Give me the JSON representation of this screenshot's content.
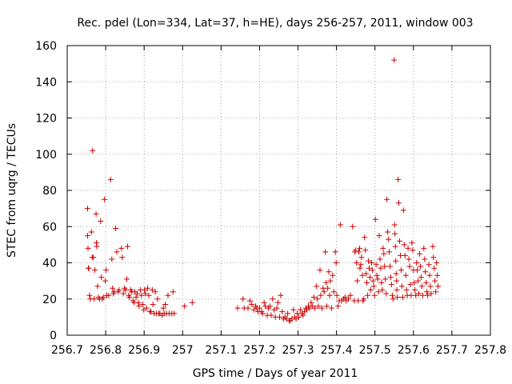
{
  "chart_data": {
    "type": "scatter",
    "title": "Rec. pdel (Lon=334, Lat=37, h=HE), days 256-257, 2011, window 003",
    "xlabel": "GPS time / Days of year 2011",
    "ylabel": "STEC from uqrg / TECUs",
    "xlim": [
      256.7,
      257.8
    ],
    "ylim": [
      0,
      160
    ],
    "xticks": [
      256.7,
      256.8,
      256.9,
      257.0,
      257.1,
      257.2,
      257.3,
      257.4,
      257.5,
      257.6,
      257.7,
      257.8
    ],
    "xtick_labels": [
      "256.7",
      "256.8",
      "256.9",
      "257",
      "257.1",
      "257.2",
      "257.3",
      "257.4",
      "257.5",
      "257.6",
      "257.7",
      "257.8"
    ],
    "yticks": [
      0,
      20,
      40,
      60,
      80,
      100,
      120,
      140,
      160
    ],
    "ytick_labels": [
      "0",
      "20",
      "40",
      "60",
      "80",
      "100",
      "120",
      "140",
      "160"
    ],
    "grid": true,
    "marker": "+",
    "color": "#cc0000",
    "points": [
      [
        256.753,
        70
      ],
      [
        256.753,
        55
      ],
      [
        256.754,
        48
      ],
      [
        256.755,
        37
      ],
      [
        256.756,
        37
      ],
      [
        256.758,
        22
      ],
      [
        256.76,
        20
      ],
      [
        256.763,
        57
      ],
      [
        256.765,
        43
      ],
      [
        256.766,
        102
      ],
      [
        256.768,
        43
      ],
      [
        256.77,
        20
      ],
      [
        256.772,
        36
      ],
      [
        256.775,
        67
      ],
      [
        256.776,
        51
      ],
      [
        256.777,
        49
      ],
      [
        256.779,
        27
      ],
      [
        256.781,
        21
      ],
      [
        256.784,
        20
      ],
      [
        256.787,
        63
      ],
      [
        256.789,
        32
      ],
      [
        256.791,
        20
      ],
      [
        256.794,
        21
      ],
      [
        256.797,
        75
      ],
      [
        256.799,
        30
      ],
      [
        256.801,
        36
      ],
      [
        256.803,
        22
      ],
      [
        256.808,
        22
      ],
      [
        256.813,
        86
      ],
      [
        256.816,
        42
      ],
      [
        256.818,
        26
      ],
      [
        256.82,
        23
      ],
      [
        256.822,
        24
      ],
      [
        256.826,
        59
      ],
      [
        256.829,
        46
      ],
      [
        256.832,
        24
      ],
      [
        256.835,
        25
      ],
      [
        256.841,
        48
      ],
      [
        256.843,
        43
      ],
      [
        256.846,
        23
      ],
      [
        256.849,
        26
      ],
      [
        256.852,
        25
      ],
      [
        256.855,
        31
      ],
      [
        256.857,
        49
      ],
      [
        256.86,
        22
      ],
      [
        256.862,
        21
      ],
      [
        256.865,
        25
      ],
      [
        256.868,
        24
      ],
      [
        256.871,
        19
      ],
      [
        256.874,
        18
      ],
      [
        256.876,
        24
      ],
      [
        256.879,
        21
      ],
      [
        256.882,
        23
      ],
      [
        256.885,
        18
      ],
      [
        256.887,
        16
      ],
      [
        256.89,
        25
      ],
      [
        256.893,
        22
      ],
      [
        256.896,
        17
      ],
      [
        256.899,
        14
      ],
      [
        256.901,
        25
      ],
      [
        256.903,
        23
      ],
      [
        256.906,
        15
      ],
      [
        256.909,
        26
      ],
      [
        256.912,
        22
      ],
      [
        256.915,
        13
      ],
      [
        256.918,
        13
      ],
      [
        256.921,
        25
      ],
      [
        256.923,
        17
      ],
      [
        256.926,
        12
      ],
      [
        256.929,
        24
      ],
      [
        256.932,
        12
      ],
      [
        256.935,
        20
      ],
      [
        256.938,
        12
      ],
      [
        256.941,
        12
      ],
      [
        256.947,
        11
      ],
      [
        256.95,
        15
      ],
      [
        256.952,
        12
      ],
      [
        256.955,
        17
      ],
      [
        256.958,
        12
      ],
      [
        256.962,
        22
      ],
      [
        256.965,
        12
      ],
      [
        256.972,
        12
      ],
      [
        256.975,
        24
      ],
      [
        256.978,
        12
      ],
      [
        257.005,
        16
      ],
      [
        257.025,
        18
      ],
      [
        257.143,
        15
      ],
      [
        257.157,
        20
      ],
      [
        257.16,
        15
      ],
      [
        257.17,
        15
      ],
      [
        257.175,
        19
      ],
      [
        257.18,
        17
      ],
      [
        257.185,
        14
      ],
      [
        257.19,
        16
      ],
      [
        257.193,
        15
      ],
      [
        257.196,
        13
      ],
      [
        257.2,
        15
      ],
      [
        257.205,
        13
      ],
      [
        257.208,
        12
      ],
      [
        257.212,
        18
      ],
      [
        257.215,
        16
      ],
      [
        257.22,
        11
      ],
      [
        257.223,
        15
      ],
      [
        257.227,
        16
      ],
      [
        257.23,
        11
      ],
      [
        257.234,
        20
      ],
      [
        257.238,
        14
      ],
      [
        257.241,
        10
      ],
      [
        257.245,
        15
      ],
      [
        257.248,
        18
      ],
      [
        257.252,
        10
      ],
      [
        257.255,
        22
      ],
      [
        257.259,
        13
      ],
      [
        257.262,
        9
      ],
      [
        257.266,
        10
      ],
      [
        257.27,
        9
      ],
      [
        257.273,
        12
      ],
      [
        257.277,
        8
      ],
      [
        257.28,
        8
      ],
      [
        257.284,
        9
      ],
      [
        257.288,
        14
      ],
      [
        257.291,
        10
      ],
      [
        257.295,
        9
      ],
      [
        257.298,
        12
      ],
      [
        257.302,
        10
      ],
      [
        257.306,
        14
      ],
      [
        257.31,
        12
      ],
      [
        257.313,
        11
      ],
      [
        257.317,
        13
      ],
      [
        257.32,
        15
      ],
      [
        257.323,
        14
      ],
      [
        257.327,
        16
      ],
      [
        257.33,
        15
      ],
      [
        257.334,
        18
      ],
      [
        257.337,
        16
      ],
      [
        257.341,
        21
      ],
      [
        257.344,
        15
      ],
      [
        257.348,
        27
      ],
      [
        257.35,
        20
      ],
      [
        257.353,
        16
      ],
      [
        257.357,
        36
      ],
      [
        257.359,
        22
      ],
      [
        257.362,
        15
      ],
      [
        257.365,
        26
      ],
      [
        257.368,
        24
      ],
      [
        257.371,
        46
      ],
      [
        257.373,
        29
      ],
      [
        257.375,
        16
      ],
      [
        257.377,
        26
      ],
      [
        257.38,
        35
      ],
      [
        257.382,
        22
      ],
      [
        257.384,
        30
      ],
      [
        257.387,
        15
      ],
      [
        257.39,
        33
      ],
      [
        257.393,
        24
      ],
      [
        257.397,
        46
      ],
      [
        257.399,
        40
      ],
      [
        257.401,
        22
      ],
      [
        257.404,
        16
      ],
      [
        257.407,
        19
      ],
      [
        257.41,
        61
      ],
      [
        257.413,
        19
      ],
      [
        257.418,
        20
      ],
      [
        257.422,
        21
      ],
      [
        257.425,
        19
      ],
      [
        257.431,
        20
      ],
      [
        257.436,
        22
      ],
      [
        257.442,
        60
      ],
      [
        257.446,
        19
      ],
      [
        257.448,
        46
      ],
      [
        257.449,
        47
      ],
      [
        257.452,
        40
      ],
      [
        257.454,
        30
      ],
      [
        257.456,
        19
      ],
      [
        257.458,
        46
      ],
      [
        257.46,
        48
      ],
      [
        257.461,
        37
      ],
      [
        257.463,
        39
      ],
      [
        257.465,
        43
      ],
      [
        257.467,
        33
      ],
      [
        257.469,
        19
      ],
      [
        257.471,
        20
      ],
      [
        257.473,
        54
      ],
      [
        257.475,
        47
      ],
      [
        257.477,
        34
      ],
      [
        257.479,
        29
      ],
      [
        257.481,
        22
      ],
      [
        257.483,
        41
      ],
      [
        257.485,
        37
      ],
      [
        257.487,
        32
      ],
      [
        257.489,
        25
      ],
      [
        257.491,
        40
      ],
      [
        257.493,
        36
      ],
      [
        257.495,
        30
      ],
      [
        257.497,
        27
      ],
      [
        257.499,
        22
      ],
      [
        257.501,
        64
      ],
      [
        257.503,
        39
      ],
      [
        257.505,
        33
      ],
      [
        257.507,
        31
      ],
      [
        257.509,
        24
      ],
      [
        257.511,
        55
      ],
      [
        257.513,
        42
      ],
      [
        257.515,
        37
      ],
      [
        257.517,
        29
      ],
      [
        257.519,
        25
      ],
      [
        257.521,
        48
      ],
      [
        257.523,
        45
      ],
      [
        257.525,
        38
      ],
      [
        257.527,
        31
      ],
      [
        257.529,
        23
      ],
      [
        257.531,
        75
      ],
      [
        257.533,
        57
      ],
      [
        257.535,
        53
      ],
      [
        257.537,
        46
      ],
      [
        257.539,
        38
      ],
      [
        257.541,
        32
      ],
      [
        257.543,
        28
      ],
      [
        257.545,
        22
      ],
      [
        257.547,
        20
      ],
      [
        257.55,
        152
      ],
      [
        257.551,
        61
      ],
      [
        257.552,
        56
      ],
      [
        257.553,
        49
      ],
      [
        257.554,
        41
      ],
      [
        257.555,
        34
      ],
      [
        257.556,
        30
      ],
      [
        257.557,
        25
      ],
      [
        257.558,
        21
      ],
      [
        257.56,
        86
      ],
      [
        257.562,
        73
      ],
      [
        257.564,
        52
      ],
      [
        257.566,
        44
      ],
      [
        257.568,
        36
      ],
      [
        257.57,
        27
      ],
      [
        257.572,
        21
      ],
      [
        257.574,
        69
      ],
      [
        257.576,
        50
      ],
      [
        257.578,
        44
      ],
      [
        257.58,
        33
      ],
      [
        257.582,
        25
      ],
      [
        257.584,
        22
      ],
      [
        257.586,
        48
      ],
      [
        257.588,
        42
      ],
      [
        257.59,
        38
      ],
      [
        257.592,
        28
      ],
      [
        257.594,
        22
      ],
      [
        257.596,
        51
      ],
      [
        257.598,
        47
      ],
      [
        257.6,
        36
      ],
      [
        257.602,
        29
      ],
      [
        257.604,
        25
      ],
      [
        257.606,
        22
      ],
      [
        257.608,
        40
      ],
      [
        257.61,
        36
      ],
      [
        257.612,
        30
      ],
      [
        257.614,
        23
      ],
      [
        257.616,
        45
      ],
      [
        257.618,
        38
      ],
      [
        257.62,
        32
      ],
      [
        257.622,
        27
      ],
      [
        257.624,
        22
      ],
      [
        257.627,
        48
      ],
      [
        257.629,
        42
      ],
      [
        257.631,
        35
      ],
      [
        257.633,
        29
      ],
      [
        257.635,
        24
      ],
      [
        257.637,
        22
      ],
      [
        257.64,
        39
      ],
      [
        257.642,
        33
      ],
      [
        257.644,
        27
      ],
      [
        257.646,
        23
      ],
      [
        257.65,
        49
      ],
      [
        257.652,
        43
      ],
      [
        257.654,
        37
      ],
      [
        257.656,
        30
      ],
      [
        257.658,
        24
      ],
      [
        257.66,
        40
      ],
      [
        257.662,
        33
      ],
      [
        257.664,
        27
      ]
    ]
  }
}
